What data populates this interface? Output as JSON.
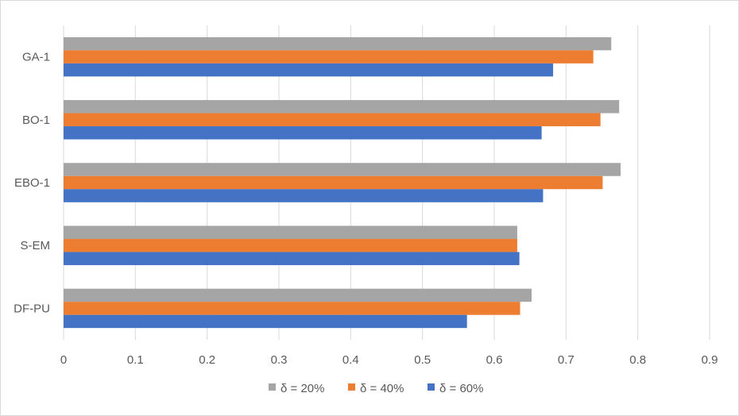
{
  "chart_data": {
    "type": "bar",
    "orientation": "horizontal",
    "categories": [
      "GA-1",
      "BO-1",
      "EBO-1",
      "S-EM",
      "DF-PU"
    ],
    "series": [
      {
        "name": "δ = 20%",
        "color": "#a5a5a5",
        "values": [
          0.763,
          0.774,
          0.776,
          0.632,
          0.652
        ]
      },
      {
        "name": "δ = 40%",
        "color": "#ed7d31",
        "values": [
          0.738,
          0.748,
          0.751,
          0.632,
          0.636
        ]
      },
      {
        "name": "δ = 60%",
        "color": "#4472c4",
        "values": [
          0.682,
          0.666,
          0.668,
          0.635,
          0.562
        ]
      }
    ],
    "x_ticks": [
      "0",
      "0.1",
      "0.2",
      "0.3",
      "0.4",
      "0.5",
      "0.6",
      "0.7",
      "0.8",
      "0.9"
    ],
    "xlim": [
      0,
      0.9
    ],
    "grid": true,
    "legend_position": "bottom",
    "title": "",
    "xlabel": "",
    "ylabel": ""
  }
}
